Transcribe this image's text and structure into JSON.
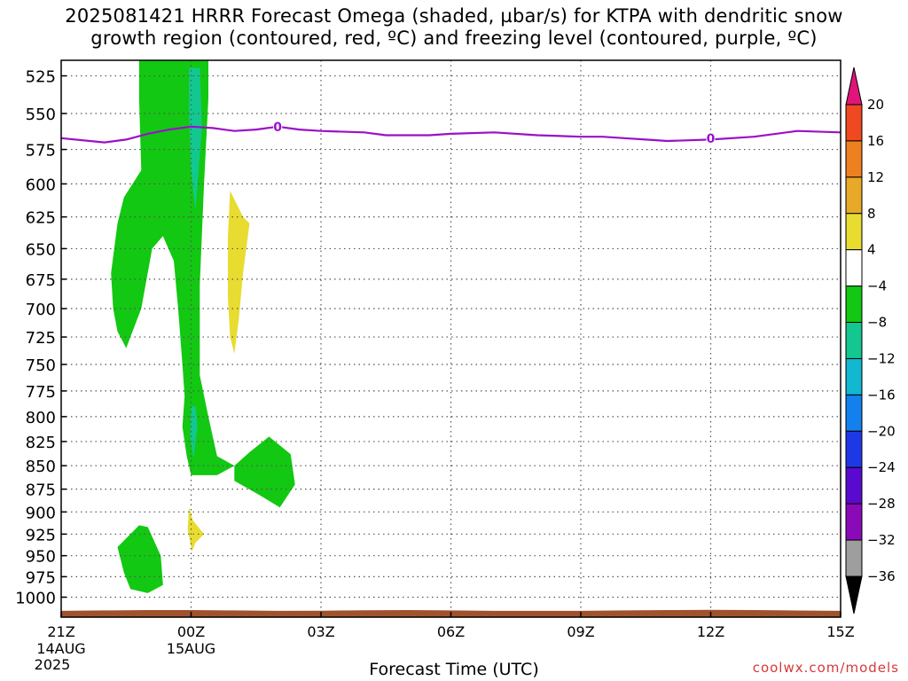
{
  "chart_data": {
    "type": "heatmap",
    "title_lines": [
      "2025081421 HRRR Forecast Omega (shaded, µbar/s) for KTPA with dendritic snow",
      "growth region (contoured, red, ºC) and freezing level (contoured, purple, ºC)"
    ],
    "xlabel": "Forecast Time (UTC)",
    "ylabel": "",
    "x_hours": [
      0,
      3,
      6,
      9,
      12,
      15,
      18
    ],
    "x_tick_labels": [
      "21Z",
      "00Z",
      "03Z",
      "06Z",
      "09Z",
      "12Z",
      "15Z"
    ],
    "x_date_labels": [
      {
        "hour": 0,
        "lines": [
          "14AUG",
          "2025"
        ]
      },
      {
        "hour": 3,
        "lines": [
          "15AUG"
        ]
      }
    ],
    "y_levels": [
      525,
      550,
      575,
      600,
      625,
      650,
      675,
      700,
      725,
      750,
      775,
      800,
      825,
      850,
      875,
      900,
      925,
      950,
      975,
      1000
    ],
    "ylim": [
      1025,
      515
    ],
    "y_scale": "log",
    "grid": true,
    "legend": "right",
    "colorbar": {
      "bins": [
        {
          "color": "#9e9e9e",
          "min": -36,
          "max": -32
        },
        {
          "color": "#8a0ab8",
          "min": -32,
          "max": -28
        },
        {
          "color": "#5a0ad0",
          "min": -28,
          "max": -24
        },
        {
          "color": "#1f38e6",
          "min": -24,
          "max": -20
        },
        {
          "color": "#1480ee",
          "min": -20,
          "max": -16
        },
        {
          "color": "#10b8d0",
          "min": -16,
          "max": -12
        },
        {
          "color": "#12c890",
          "min": -12,
          "max": -8
        },
        {
          "color": "#12c812",
          "min": -8,
          "max": -4
        },
        {
          "color": "#ffffff",
          "min": -4,
          "max": 4
        },
        {
          "color": "#e8dc30",
          "min": 4,
          "max": 8
        },
        {
          "color": "#e8a828",
          "min": 8,
          "max": 12
        },
        {
          "color": "#ee8020",
          "min": 12,
          "max": 16
        },
        {
          "color": "#f04820",
          "min": 16,
          "max": 20
        }
      ],
      "top_color": "#e0147a",
      "bottom_color": "#000000",
      "tick_labels": [
        "20",
        "16",
        "12",
        "8",
        "4",
        "−4",
        "−8",
        "−12",
        "−16",
        "−20",
        "−24",
        "−28",
        "−32",
        "−36"
      ]
    },
    "regions": [
      {
        "name": "omega-green-main",
        "color": "#12c812",
        "points": [
          [
            1.8,
            515
          ],
          [
            3.4,
            515
          ],
          [
            3.4,
            540
          ],
          [
            3.3,
            600
          ],
          [
            3.2,
            680
          ],
          [
            3.2,
            760
          ],
          [
            3.4,
            800
          ],
          [
            3.6,
            840
          ],
          [
            4,
            850
          ],
          [
            3.6,
            860
          ],
          [
            3,
            860
          ],
          [
            2.9,
            840
          ],
          [
            2.8,
            810
          ],
          [
            2.85,
            780
          ],
          [
            2.8,
            750
          ],
          [
            2.7,
            700
          ],
          [
            2.6,
            660
          ],
          [
            2.35,
            640
          ],
          [
            2.1,
            650
          ],
          [
            1.85,
            700
          ],
          [
            1.5,
            735
          ],
          [
            1.3,
            720
          ],
          [
            1.2,
            700
          ],
          [
            1.15,
            670
          ],
          [
            1.3,
            630
          ],
          [
            1.45,
            610
          ],
          [
            1.85,
            590
          ],
          [
            1.8,
            540
          ]
        ]
      },
      {
        "name": "omega-green-arm",
        "color": "#12c812",
        "points": [
          [
            4,
            850
          ],
          [
            4.35,
            836
          ],
          [
            4.8,
            820
          ],
          [
            5.3,
            838
          ],
          [
            5.4,
            870
          ],
          [
            5.05,
            895
          ],
          [
            4.6,
            882
          ],
          [
            4,
            866
          ]
        ]
      },
      {
        "name": "omega-green-low",
        "color": "#12c812",
        "points": [
          [
            1.3,
            940
          ],
          [
            1.8,
            915
          ],
          [
            2,
            917
          ],
          [
            2.3,
            950
          ],
          [
            2.35,
            985
          ],
          [
            2,
            995
          ],
          [
            1.6,
            990
          ],
          [
            1.45,
            970
          ]
        ]
      },
      {
        "name": "omega-teal-upper",
        "color": "#12c890",
        "points": [
          [
            2.95,
            520
          ],
          [
            3.2,
            520
          ],
          [
            3.25,
            560
          ],
          [
            3.1,
            620
          ],
          [
            3,
            590
          ],
          [
            2.95,
            550
          ]
        ]
      },
      {
        "name": "omega-teal-lower",
        "color": "#12c890",
        "points": [
          [
            3,
            790
          ],
          [
            3.1,
            790
          ],
          [
            3.15,
            810
          ],
          [
            3.05,
            842
          ],
          [
            2.98,
            820
          ]
        ]
      },
      {
        "name": "omega-yellow-upper",
        "color": "#e8dc30",
        "points": [
          [
            3.9,
            605
          ],
          [
            4.2,
            625
          ],
          [
            4.35,
            630
          ],
          [
            4.2,
            670
          ],
          [
            4.1,
            710
          ],
          [
            4,
            740
          ],
          [
            3.9,
            725
          ],
          [
            3.85,
            690
          ],
          [
            3.85,
            640
          ]
        ]
      },
      {
        "name": "omega-yellow-lower",
        "color": "#e8dc30",
        "points": [
          [
            2.95,
            895
          ],
          [
            3.05,
            910
          ],
          [
            3.3,
            925
          ],
          [
            3.1,
            935
          ],
          [
            3.02,
            945
          ],
          [
            2.92,
            920
          ]
        ]
      }
    ],
    "series": [
      {
        "name": "",
        "style": "freezing-level",
        "color": "#9a10c8",
        "x": [
          0,
          1,
          1.5,
          2,
          2.5,
          3,
          3.5,
          4,
          4.5,
          5,
          5.5,
          6,
          7,
          7.5,
          8,
          8.5,
          9,
          10,
          11,
          12,
          12.5,
          13,
          13.5,
          14,
          15,
          16,
          17,
          18
        ],
        "y": [
          567,
          570,
          568,
          564,
          561,
          559,
          560,
          562,
          561,
          559,
          561,
          562,
          563,
          565,
          565,
          565,
          564,
          563,
          565,
          566,
          566,
          567,
          568,
          569,
          568,
          566,
          562,
          563
        ]
      }
    ],
    "contour_labels": [
      {
        "x": 5,
        "y": 559,
        "text": "0"
      },
      {
        "x": 15,
        "y": 567,
        "text": "0"
      }
    ],
    "terrain_color": "#a0522d",
    "terrain_surface_hpa": [
      1017,
      1016.5,
      1016,
      1016,
      1016.5,
      1017,
      1016.8,
      1016.3,
      1016,
      1016.5,
      1017,
      1017,
      1017,
      1016.5,
      1016,
      1015.8,
      1016,
      1016.6,
      1017
    ]
  },
  "credit": "coolwx.com/models"
}
